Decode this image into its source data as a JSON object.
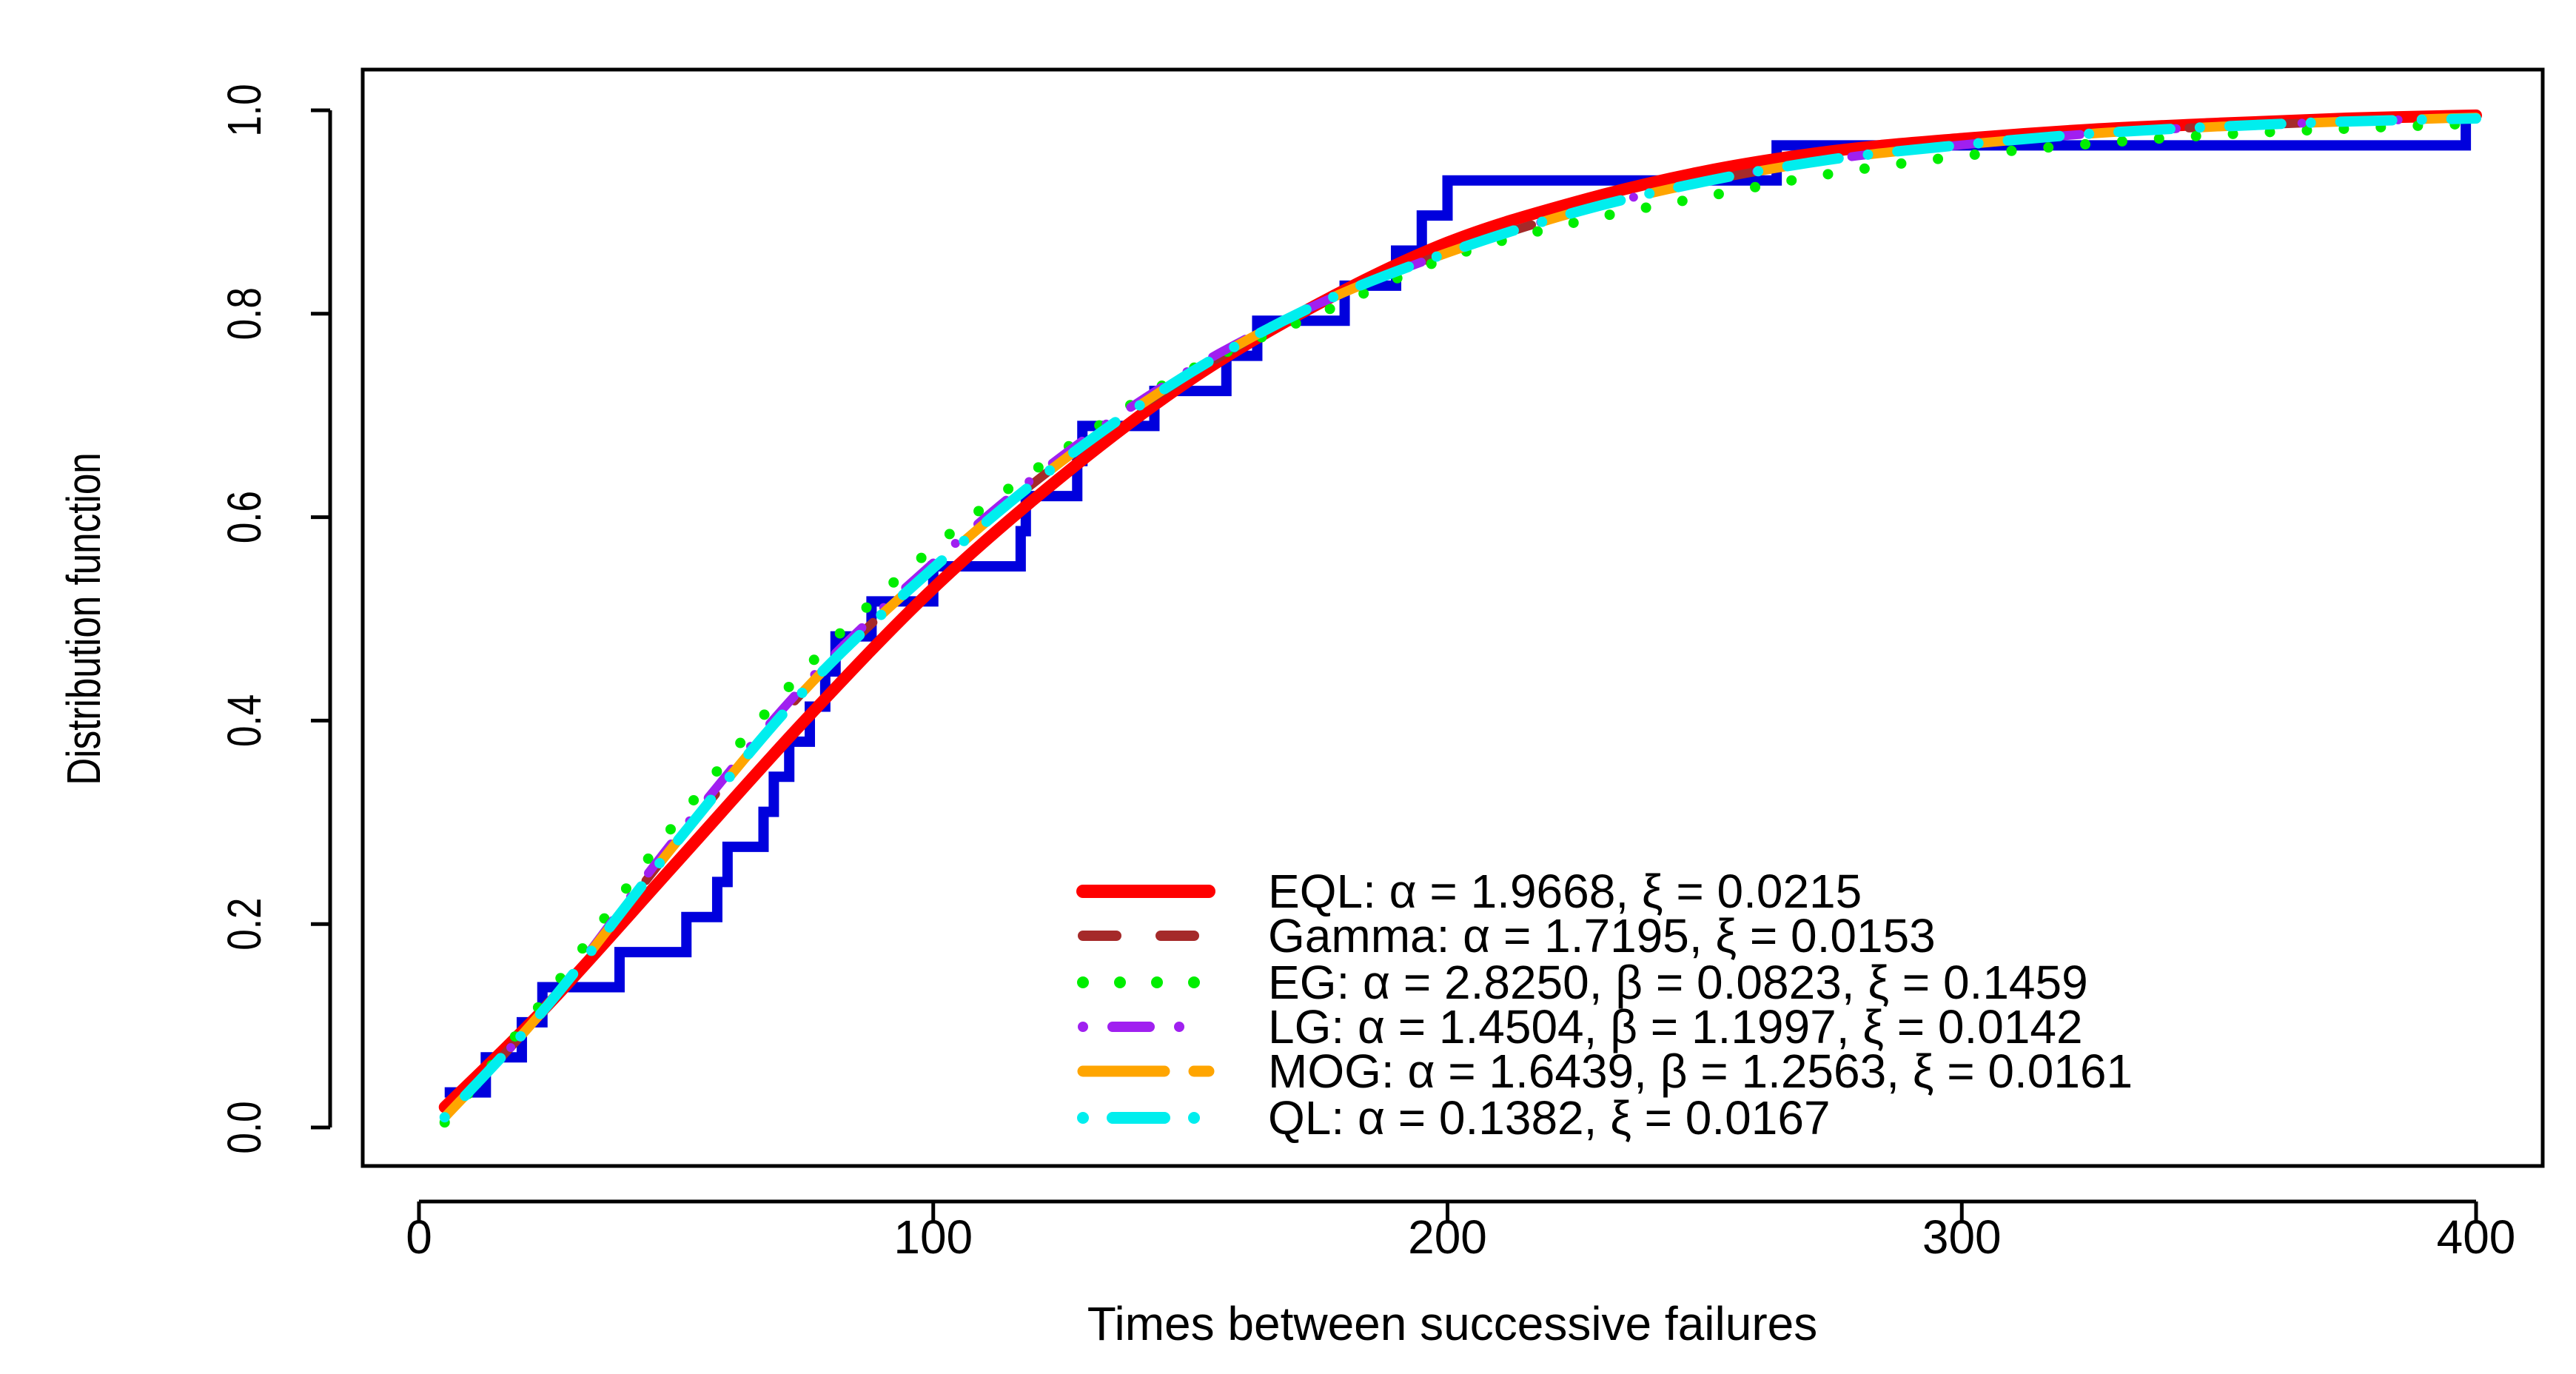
{
  "chart_data": {
    "type": "line",
    "title": "",
    "xlabel": "Times between successive failures",
    "ylabel": "Distribution function",
    "xlim": [
      0,
      400
    ],
    "ylim": [
      0,
      1
    ],
    "xticks": [
      "0",
      "100",
      "200",
      "300",
      "400"
    ],
    "yticks": [
      "0.0",
      "0.2",
      "0.4",
      "0.6",
      "0.8",
      "1.0"
    ],
    "grid": false,
    "legend_position": "bottom-right",
    "empirical": {
      "color": "#0000dd",
      "x": [
        5,
        13,
        20,
        24,
        39,
        52,
        58,
        60,
        67,
        69,
        72,
        76,
        79,
        81,
        88,
        100,
        117,
        118,
        128,
        129,
        143,
        157,
        163,
        180,
        190,
        195,
        200,
        264,
        398
      ],
      "y": [
        0.0345,
        0.069,
        0.1034,
        0.1379,
        0.1724,
        0.2069,
        0.2414,
        0.2759,
        0.3103,
        0.3448,
        0.3793,
        0.4138,
        0.4483,
        0.4828,
        0.5172,
        0.5517,
        0.5862,
        0.6207,
        0.6552,
        0.6897,
        0.7241,
        0.7586,
        0.7931,
        0.8276,
        0.8621,
        0.8966,
        0.931,
        0.9655,
        1.0
      ]
    },
    "x": [
      5,
      25,
      50,
      75,
      100,
      125,
      150,
      175,
      200,
      225,
      250,
      275,
      300,
      325,
      350,
      375,
      400
    ],
    "series": [
      {
        "name": "EQL: α = 1.9668, ξ = 0.0215",
        "color": "#ff0000",
        "dash": "solid",
        "values": [
          0.02,
          0.12,
          0.26,
          0.4,
          0.53,
          0.64,
          0.735,
          0.81,
          0.87,
          0.91,
          0.94,
          0.96,
          0.972,
          0.981,
          0.987,
          0.992,
          0.995
        ]
      },
      {
        "name": "Gamma: α = 1.7195, ξ = 0.0153",
        "color": "#a52a2a",
        "dash": "dashed",
        "values": [
          0.01,
          0.12,
          0.28,
          0.43,
          0.55,
          0.655,
          0.74,
          0.81,
          0.86,
          0.9,
          0.93,
          0.952,
          0.966,
          0.977,
          0.984,
          0.989,
          0.993
        ]
      },
      {
        "name": "EG: α = 2.8250, β = 0.0823, ξ = 0.1459",
        "color": "#00ee00",
        "dash": "dotted",
        "values": [
          0.005,
          0.13,
          0.3,
          0.45,
          0.57,
          0.665,
          0.745,
          0.8,
          0.855,
          0.89,
          0.915,
          0.938,
          0.955,
          0.967,
          0.976,
          0.982,
          0.987
        ]
      },
      {
        "name": "LG: α = 1.4504, β = 1.1997, ξ = 0.0142",
        "color": "#a020f0",
        "dash": "dotdash",
        "values": [
          0.01,
          0.12,
          0.285,
          0.435,
          0.555,
          0.66,
          0.745,
          0.81,
          0.86,
          0.9,
          0.93,
          0.952,
          0.966,
          0.977,
          0.984,
          0.989,
          0.993
        ]
      },
      {
        "name": "MOG: α = 1.6439, β = 1.2563, ξ = 0.0161",
        "color": "#ffa500",
        "dash": "longdash",
        "values": [
          0.01,
          0.12,
          0.28,
          0.43,
          0.55,
          0.655,
          0.742,
          0.81,
          0.86,
          0.9,
          0.93,
          0.952,
          0.966,
          0.977,
          0.984,
          0.989,
          0.993
        ]
      },
      {
        "name": "QL: α = 0.1382, ξ = 0.0167",
        "color": "#00eeee",
        "dash": "twodash",
        "values": [
          0.01,
          0.12,
          0.28,
          0.43,
          0.55,
          0.655,
          0.742,
          0.81,
          0.86,
          0.9,
          0.93,
          0.952,
          0.966,
          0.977,
          0.984,
          0.989,
          0.992
        ]
      }
    ]
  }
}
